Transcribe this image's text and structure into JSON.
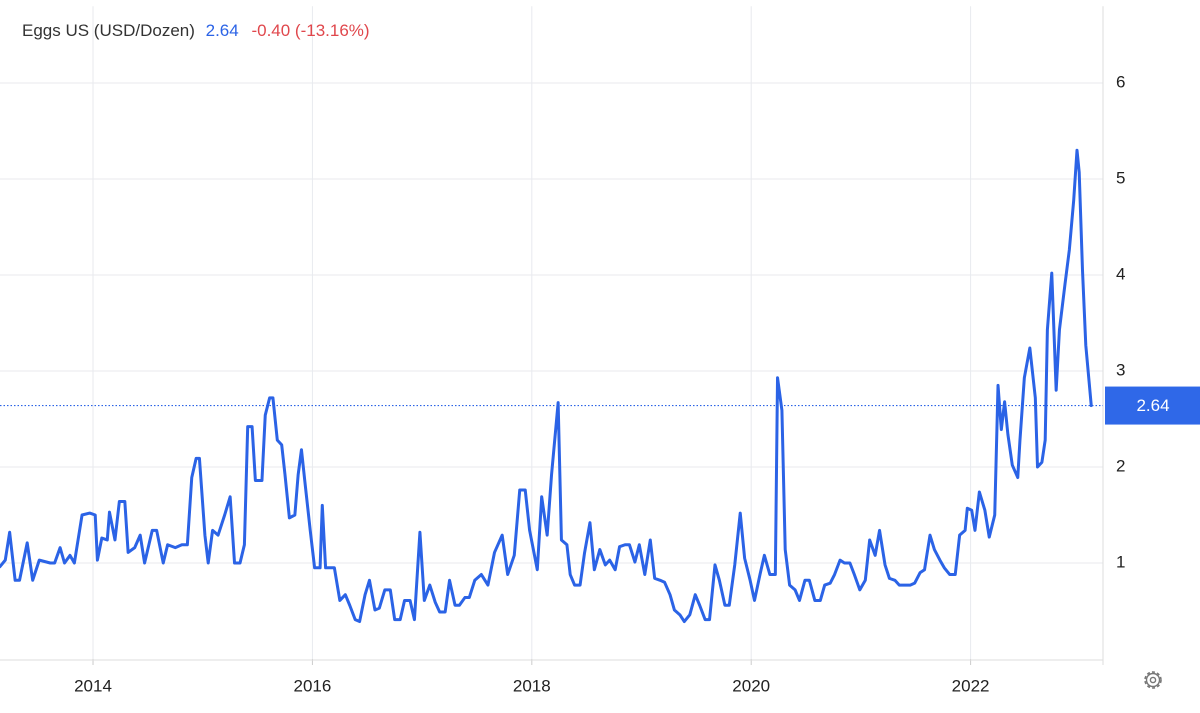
{
  "chart_data": {
    "type": "line",
    "title": "Eggs US (USD/Dozen)",
    "last": 2.64,
    "change": "-0.40 (-13.16%)",
    "x": [
      2013.15,
      2013.2,
      2013.24,
      2013.29,
      2013.33,
      2013.4,
      2013.45,
      2013.51,
      2013.61,
      2013.65,
      2013.7,
      2013.74,
      2013.79,
      2013.83,
      2013.9,
      2013.97,
      2014.02,
      2014.04,
      2014.08,
      2014.13,
      2014.15,
      2014.2,
      2014.24,
      2014.29,
      2014.32,
      2014.38,
      2014.43,
      2014.47,
      2014.54,
      2014.58,
      2014.64,
      2014.68,
      2014.75,
      2014.81,
      2014.86,
      2014.9,
      2014.94,
      2014.97,
      2015.02,
      2015.05,
      2015.09,
      2015.14,
      2015.2,
      2015.25,
      2015.29,
      2015.34,
      2015.38,
      2015.41,
      2015.45,
      2015.48,
      2015.54,
      2015.57,
      2015.61,
      2015.64,
      2015.68,
      2015.72,
      2015.75,
      2015.79,
      2015.84,
      2015.87,
      2015.9,
      2015.93,
      2015.98,
      2016.02,
      2016.07,
      2016.09,
      2016.12,
      2016.2,
      2016.25,
      2016.3,
      2016.34,
      2016.39,
      2016.43,
      2016.48,
      2016.52,
      2016.57,
      2016.61,
      2016.66,
      2016.71,
      2016.75,
      2016.8,
      2016.84,
      2016.89,
      2016.93,
      2016.98,
      2017.02,
      2017.07,
      2017.12,
      2017.16,
      2017.21,
      2017.25,
      2017.3,
      2017.34,
      2017.39,
      2017.43,
      2017.48,
      2017.54,
      2017.6,
      2017.66,
      2017.73,
      2017.78,
      2017.84,
      2017.89,
      2017.94,
      2017.98,
      2018.05,
      2018.09,
      2018.14,
      2018.18,
      2018.24,
      2018.27,
      2018.32,
      2018.35,
      2018.39,
      2018.44,
      2018.48,
      2018.53,
      2018.57,
      2018.62,
      2018.67,
      2018.71,
      2018.76,
      2018.8,
      2018.85,
      2018.89,
      2018.94,
      2018.98,
      2019.03,
      2019.08,
      2019.12,
      2019.17,
      2019.21,
      2019.26,
      2019.3,
      2019.35,
      2019.39,
      2019.44,
      2019.49,
      2019.53,
      2019.58,
      2019.62,
      2019.67,
      2019.71,
      2019.76,
      2019.8,
      2019.85,
      2019.9,
      2019.94,
      2019.99,
      2020.03,
      2020.08,
      2020.12,
      2020.17,
      2020.22,
      2020.24,
      2020.28,
      2020.31,
      2020.35,
      2020.4,
      2020.44,
      2020.49,
      2020.53,
      2020.58,
      2020.63,
      2020.67,
      2020.72,
      2020.76,
      2020.81,
      2020.85,
      2020.9,
      2020.94,
      2020.99,
      2021.04,
      2021.08,
      2021.13,
      2021.17,
      2021.22,
      2021.26,
      2021.31,
      2021.35,
      2021.4,
      2021.45,
      2021.49,
      2021.54,
      2021.58,
      2021.63,
      2021.67,
      2021.72,
      2021.76,
      2021.81,
      2021.86,
      2021.9,
      2021.95,
      2021.97,
      2022.01,
      2022.04,
      2022.08,
      2022.13,
      2022.17,
      2022.22,
      2022.25,
      2022.28,
      2022.31,
      2022.34,
      2022.38,
      2022.43,
      2022.45,
      2022.49,
      2022.54,
      2022.59,
      2022.61,
      2022.65,
      2022.68,
      2022.7,
      2022.74,
      2022.78,
      2022.81,
      2022.86,
      2022.9,
      2022.94,
      2022.97,
      2022.99,
      2023.02,
      2023.05,
      2023.1
    ],
    "series": [
      {
        "name": "Eggs US",
        "color": "#2b63e6",
        "values": [
          0.96,
          1.03,
          1.32,
          0.82,
          0.82,
          1.21,
          0.82,
          1.03,
          1.0,
          1.0,
          1.16,
          1.0,
          1.08,
          1.0,
          1.5,
          1.52,
          1.5,
          1.03,
          1.26,
          1.24,
          1.53,
          1.24,
          1.64,
          1.64,
          1.11,
          1.16,
          1.29,
          1.0,
          1.34,
          1.34,
          1.0,
          1.19,
          1.16,
          1.19,
          1.19,
          1.89,
          2.09,
          2.09,
          1.29,
          1.0,
          1.34,
          1.29,
          1.5,
          1.69,
          1.0,
          1.0,
          1.19,
          2.42,
          2.42,
          1.86,
          1.86,
          2.54,
          2.72,
          2.72,
          2.28,
          2.23,
          1.92,
          1.47,
          1.5,
          1.92,
          2.18,
          1.86,
          1.34,
          0.95,
          0.95,
          1.6,
          0.95,
          0.95,
          0.61,
          0.67,
          0.56,
          0.41,
          0.39,
          0.67,
          0.82,
          0.51,
          0.53,
          0.72,
          0.72,
          0.41,
          0.41,
          0.61,
          0.61,
          0.41,
          1.32,
          0.61,
          0.77,
          0.59,
          0.49,
          0.49,
          0.82,
          0.56,
          0.56,
          0.64,
          0.64,
          0.82,
          0.88,
          0.77,
          1.11,
          1.29,
          0.88,
          1.08,
          1.76,
          1.76,
          1.34,
          0.93,
          1.69,
          1.29,
          1.92,
          2.67,
          1.24,
          1.19,
          0.88,
          0.77,
          0.77,
          1.1,
          1.42,
          0.93,
          1.14,
          0.98,
          1.03,
          0.93,
          1.17,
          1.19,
          1.19,
          1.01,
          1.19,
          0.88,
          1.24,
          0.84,
          0.82,
          0.8,
          0.67,
          0.51,
          0.46,
          0.39,
          0.46,
          0.67,
          0.56,
          0.41,
          0.41,
          0.98,
          0.82,
          0.56,
          0.56,
          0.98,
          1.52,
          1.05,
          0.82,
          0.61,
          0.88,
          1.08,
          0.88,
          0.88,
          2.93,
          2.59,
          1.14,
          0.77,
          0.72,
          0.61,
          0.82,
          0.82,
          0.61,
          0.61,
          0.77,
          0.79,
          0.88,
          1.03,
          1.0,
          1.0,
          0.88,
          0.72,
          0.82,
          1.24,
          1.08,
          1.34,
          0.98,
          0.84,
          0.82,
          0.77,
          0.77,
          0.77,
          0.79,
          0.9,
          0.93,
          1.29,
          1.14,
          1.03,
          0.95,
          0.88,
          0.88,
          1.29,
          1.34,
          1.57,
          1.55,
          1.34,
          1.74,
          1.55,
          1.27,
          1.5,
          2.85,
          2.39,
          2.68,
          2.34,
          2.02,
          1.89,
          2.28,
          2.93,
          3.24,
          2.72,
          2.0,
          2.05,
          2.28,
          3.43,
          4.02,
          2.8,
          3.43,
          3.9,
          4.26,
          4.78,
          5.3,
          5.07,
          4.05,
          3.27,
          2.64
        ]
      }
    ],
    "xlim": [
      2013.152,
      2023.207
    ],
    "xticks": [
      2014,
      2016,
      2018,
      2020,
      2022
    ],
    "ylim": [
      0,
      6.8
    ],
    "yticks": [
      1,
      2,
      3,
      4,
      5,
      6
    ],
    "grid": true
  }
}
